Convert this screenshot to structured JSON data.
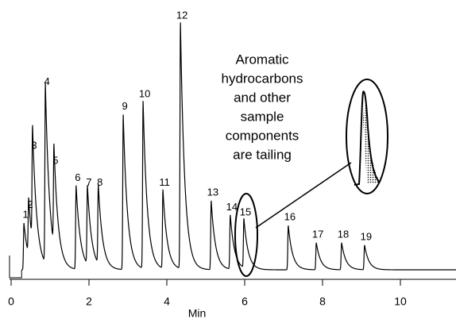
{
  "chart_data": {
    "type": "chromatogram",
    "xlabel": "Min",
    "xlim": [
      0,
      11.5
    ],
    "xticks": [
      0,
      2,
      4,
      6,
      8,
      10
    ],
    "ylim": [
      0,
      100
    ],
    "color": "#000000",
    "peaks": {
      "labels": [
        "1",
        "2",
        "3",
        "4",
        "5",
        "6",
        "7",
        "8",
        "9",
        "10",
        "11",
        "12",
        "13",
        "14",
        "15",
        "16",
        "17",
        "18",
        "19"
      ],
      "x": [
        0.33,
        0.45,
        0.55,
        0.88,
        1.1,
        1.67,
        1.96,
        2.24,
        2.88,
        3.39,
        3.9,
        4.35,
        5.14,
        5.63,
        5.98,
        7.12,
        7.84,
        8.49,
        9.08
      ],
      "values": [
        19,
        23,
        47,
        73,
        41,
        34,
        32,
        32,
        63,
        68,
        32,
        100,
        28,
        22,
        20,
        18,
        11,
        11,
        10
      ]
    },
    "annotation": [
      "Aromatic",
      "hydrocarbons",
      "and other",
      "sample",
      "components",
      "are tailing"
    ]
  }
}
